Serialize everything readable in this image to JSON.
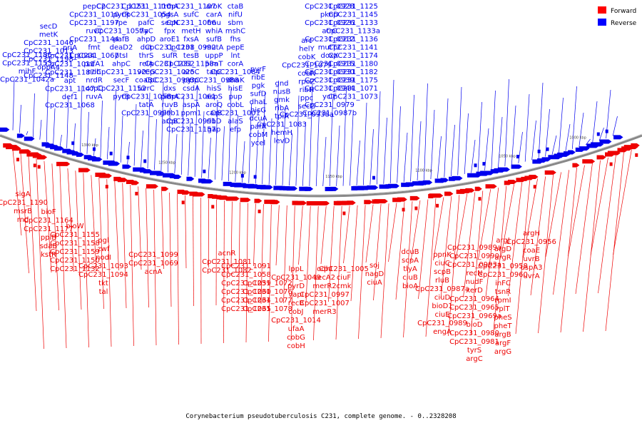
{
  "caption": "Corynebacterium pseudotuberculosis C231, complete genome. - 0..2328208",
  "legend": [
    {
      "label": "Forward",
      "color": "#ff0000"
    },
    {
      "label": "Reverse",
      "color": "#0000ff"
    }
  ],
  "colors": {
    "forward": "#ee0000",
    "reverse": "#0000ee",
    "backbone": "#888888"
  },
  "ticks": [
    "1000 kbp",
    "1050 kbp",
    "1100 kbp",
    "1150 kbp",
    "1200 kbp",
    "1250 kbp",
    "1300 kbp"
  ],
  "reverse_labels": [
    "CpC231_1186",
    "CpC231_1153",
    "mihF",
    "CpC231_1042a",
    "secD",
    "metK",
    "CpC231_1046",
    "CpC231_1013",
    "CpC231_1198",
    "oppA4",
    "CpC231_1148",
    "priA",
    "CpC231_1044",
    "CpC231_1011",
    "CpC231_1187",
    "apt",
    "CpC231_1147",
    "def1",
    "CpC231_1068",
    "pepC2",
    "CpC231_1010",
    "CpC231_1197",
    "ruvC",
    "CpC231_1144",
    "fmt",
    "CpC231_1067",
    "pafA1",
    "ndh",
    "nrdR",
    "copC",
    "ruvA",
    "CpC231_1151",
    "pyrR",
    "rpe",
    "CpC231_1057a",
    "pafB",
    "deaD2",
    "ptsI",
    "ahpC",
    "CpC231_1192",
    "secF",
    "CpC231_1152",
    "pyrB",
    "CpC231_1110",
    "CpC231_1054",
    "pafC",
    "tlyC",
    "ahpD",
    "dut",
    "thrS",
    "relA",
    "vceG",
    "coaBC",
    "uvrC",
    "CpC231_1053",
    "tatA",
    "CpC231_0999",
    "trmA",
    "pgsA",
    "secN",
    "fpx",
    "aroE1",
    "CpC231_1108",
    "sufR",
    "CpC231_1052",
    "CpC231_1025",
    "CpC231_0993",
    "dxs",
    "pimA",
    "ruvB",
    "glob1",
    "aroB",
    "CpC231_1107",
    "sufC",
    "CpC231_1066",
    "metH",
    "fxsA",
    "CpC231_0992",
    "tesB",
    "CpC231_1158a",
    "aroC",
    "pyrC",
    "csdA",
    "CpC231_1061",
    "aspA",
    "ppm1",
    "CpC231_0991",
    "CpC231_1157",
    "aroK",
    "carA",
    "fmu",
    "whiA",
    "sufB",
    "mutA",
    "uppP",
    "pimT",
    "tatC",
    "CpC231_0988",
    "hisS",
    "aspS",
    "aroQ",
    "carB",
    "ribD",
    "gap",
    "ctaB",
    "nifU",
    "sbm",
    "mshC",
    "fhs",
    "pepE",
    "lnt",
    "corA",
    "CpC231_1084",
    "dhaK",
    "hisE",
    "pup",
    "cobL",
    "CpC231_1001",
    "alaS",
    "efp",
    "pyrF",
    "ribE",
    "pgk",
    "sufD",
    "dhaL",
    "hisG",
    "dcuA",
    "pafA",
    "cobM",
    "ycel",
    "gnd",
    "nusB",
    "gmk",
    "ribA",
    "tpiA",
    "CpC231_1083",
    "hemH",
    "levD",
    "arc",
    "helY",
    "cobK",
    "CpC231_1079",
    "cobN",
    "rpoZ",
    "ribH",
    "ppc",
    "secG",
    "CpC231_0938a",
    "CpC231_0928",
    "pknD",
    "CpC231_0926",
    "atrC",
    "CpC231_0912",
    "mutT2",
    "doxX",
    "CpC231_0915",
    "CpC231_0930",
    "CpC231_0939",
    "CpC231_0944",
    "ycIF",
    "CpC231_0979",
    "CpC231_0987b",
    "CpC231_1125",
    "CpC231_1145",
    "CpC231_1133",
    "CpC231_1133a",
    "CpC231_1136",
    "CpC231_1141",
    "CpC231_1174",
    "CpC231_1180",
    "CpC231_1182",
    "CpC231_1175",
    "CpC231_1071",
    "CpC231_1073"
  ],
  "forward_labels": [
    "sigA",
    "CpC231_1190",
    "msrB",
    "rnd",
    "bioF",
    "CpC231_1164",
    "CpC231_1177",
    "ppiB",
    "sdaB",
    "kstR",
    "bioW",
    "CpC231_1155",
    "CpC231_1158",
    "CpC231_1159",
    "CpC231_1150",
    "CpC231_1132",
    "pgl",
    "zwf",
    "nodI",
    "CpC231_1093",
    "CpC231_1094",
    "tkt",
    "tal",
    "CpC231_1099",
    "CpC231_1069",
    "acnA",
    "acnR",
    "CpC231_1081",
    "CpC231_1082",
    "CpC231_1091",
    "CpC231_1058",
    "CpC231_1059",
    "CpC231_1060",
    "CpC231_1064",
    "CpC231_1065",
    "CpC231_1072",
    "CpC231_1076",
    "CpC231_1077",
    "CpC231_1078",
    "lppL",
    "CpC231_1049",
    "pyrD",
    "vapI",
    "recB",
    "cobJ",
    "CpC231_1014",
    "ufaA",
    "cobG",
    "cobH",
    "odhI",
    "secA2",
    "merR2",
    "CpC231_0997",
    "CpC231_1007",
    "merR3",
    "CpC231_1005",
    "ciuF",
    "cmk",
    "soj",
    "nagD",
    "ciuA",
    "dcuB",
    "scpA",
    "tlyA",
    "ciuB",
    "bioA",
    "ppnK",
    "ciuC",
    "scpB",
    "rluB",
    "CpC231_0987a",
    "ciuD",
    "bioD1",
    "ciuE",
    "CpC231_0989",
    "engA",
    "CpC231_0989a",
    "CpC231_0990",
    "CpC231_0993a",
    "recN",
    "nudF",
    "xerD",
    "CpC231_0964",
    "CpC231_0965",
    "CpC231_0969a",
    "bioD",
    "CpC231_0980",
    "CpC231_0981",
    "tyrS",
    "argC",
    "argJ",
    "argD",
    "argR",
    "CpC231_0958",
    "CpC231_0960",
    "inFC",
    "tsnR",
    "rpmI",
    "rplT",
    "pheS",
    "pheT",
    "argB",
    "argF",
    "argG",
    "argH",
    "CpC231_0956",
    "coaE",
    "uvrB",
    "uspA3",
    "uvrA"
  ]
}
